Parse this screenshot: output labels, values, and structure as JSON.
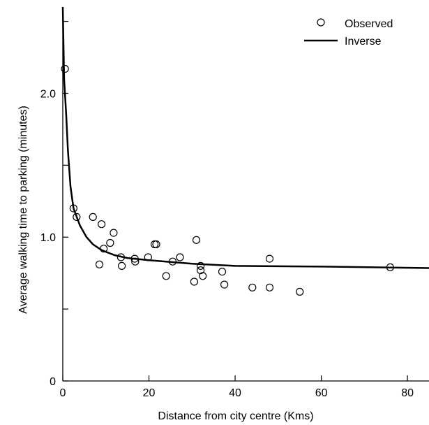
{
  "chart_data": {
    "type": "scatter",
    "title": "",
    "xlabel": "Distance from city centre (Kms)",
    "ylabel": "Average walking time to parking (minutes)",
    "xlim": [
      0,
      85
    ],
    "ylim": [
      0,
      2.6
    ],
    "xticks": [
      0,
      20,
      40,
      60,
      80
    ],
    "xtick_labels": [
      "0",
      "20",
      "40",
      "60",
      "80"
    ],
    "yticks": [
      0,
      0.5,
      1.0,
      1.5,
      2.0,
      2.5
    ],
    "ytick_labels": [
      "0",
      "",
      "1.0",
      "",
      "2.0",
      ""
    ],
    "grid": false,
    "legend_position": "top-right",
    "series": [
      {
        "name": "Observed",
        "kind": "scatter",
        "marker": "open-circle",
        "points": [
          [
            0.5,
            2.17
          ],
          [
            2.5,
            1.2
          ],
          [
            3.2,
            1.14
          ],
          [
            7.0,
            1.14
          ],
          [
            8.5,
            0.81
          ],
          [
            9.0,
            1.09
          ],
          [
            9.5,
            0.92
          ],
          [
            11.0,
            0.96
          ],
          [
            11.8,
            1.03
          ],
          [
            13.5,
            0.86
          ],
          [
            13.7,
            0.8
          ],
          [
            16.7,
            0.85
          ],
          [
            16.8,
            0.83
          ],
          [
            19.8,
            0.86
          ],
          [
            21.3,
            0.95
          ],
          [
            21.7,
            0.95
          ],
          [
            24.0,
            0.73
          ],
          [
            25.5,
            0.83
          ],
          [
            27.2,
            0.86
          ],
          [
            30.5,
            0.69
          ],
          [
            31.0,
            0.98
          ],
          [
            32.0,
            0.8
          ],
          [
            32.0,
            0.77
          ],
          [
            32.5,
            0.73
          ],
          [
            37.0,
            0.76
          ],
          [
            37.5,
            0.67
          ],
          [
            44.0,
            0.65
          ],
          [
            48.0,
            0.85
          ],
          [
            48.0,
            0.65
          ],
          [
            55.0,
            0.62
          ],
          [
            76.0,
            0.79
          ]
        ]
      },
      {
        "name": "Inverse",
        "kind": "line",
        "points": [
          [
            0.0,
            2.6
          ],
          [
            0.3,
            2.1
          ],
          [
            0.8,
            1.85
          ],
          [
            1.2,
            1.6
          ],
          [
            1.8,
            1.35
          ],
          [
            2.5,
            1.2
          ],
          [
            4.0,
            1.08
          ],
          [
            5.5,
            1.0
          ],
          [
            7.0,
            0.95
          ],
          [
            9.0,
            0.91
          ],
          [
            12.0,
            0.875
          ],
          [
            15.0,
            0.855
          ],
          [
            20.0,
            0.84
          ],
          [
            30.0,
            0.815
          ],
          [
            40.0,
            0.8
          ],
          [
            60.0,
            0.795
          ],
          [
            85.0,
            0.785
          ]
        ]
      }
    ]
  }
}
